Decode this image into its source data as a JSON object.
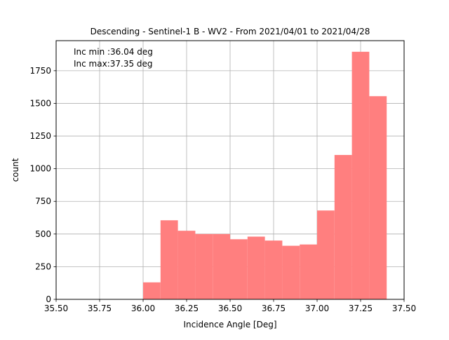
{
  "chart_data": {
    "type": "bar",
    "title": "Descending - Sentinel-1 B - WV2 - From 2021/04/01 to 2021/04/28",
    "xlabel": "Incidence Angle [Deg]",
    "ylabel": "count",
    "xlim": [
      35.5,
      37.5
    ],
    "ylim": [
      0,
      1980
    ],
    "grid": true,
    "bar_color": "#ff7f7f",
    "x_ticks": [
      "35.50",
      "35.75",
      "36.00",
      "36.25",
      "36.50",
      "36.75",
      "37.00",
      "37.25",
      "37.50"
    ],
    "y_ticks": [
      "0",
      "250",
      "500",
      "750",
      "1000",
      "1250",
      "1500",
      "1750"
    ],
    "bins": [
      {
        "x0": 36.0,
        "x1": 36.1,
        "count": 130
      },
      {
        "x0": 36.1,
        "x1": 36.2,
        "count": 605
      },
      {
        "x0": 36.2,
        "x1": 36.3,
        "count": 525
      },
      {
        "x0": 36.3,
        "x1": 36.4,
        "count": 500
      },
      {
        "x0": 36.4,
        "x1": 36.5,
        "count": 500
      },
      {
        "x0": 36.5,
        "x1": 36.6,
        "count": 460
      },
      {
        "x0": 36.6,
        "x1": 36.7,
        "count": 480
      },
      {
        "x0": 36.7,
        "x1": 36.8,
        "count": 450
      },
      {
        "x0": 36.8,
        "x1": 36.9,
        "count": 410
      },
      {
        "x0": 36.9,
        "x1": 37.0,
        "count": 420
      },
      {
        "x0": 37.0,
        "x1": 37.1,
        "count": 680
      },
      {
        "x0": 37.1,
        "x1": 37.2,
        "count": 1105
      },
      {
        "x0": 37.2,
        "x1": 37.3,
        "count": 1895
      },
      {
        "x0": 37.3,
        "x1": 37.4,
        "count": 1555
      }
    ],
    "annotations": [
      "Inc min :36.04 deg",
      "Inc max:37.35 deg"
    ]
  }
}
